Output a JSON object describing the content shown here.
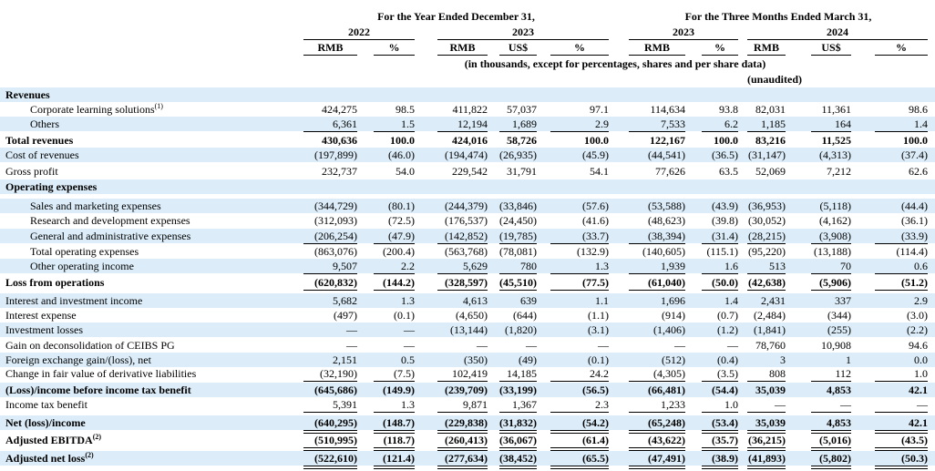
{
  "header": {
    "group_year": "For the Year Ended December 31,",
    "group_quarter": "For the Three Months Ended March 31,",
    "years": [
      "2022",
      "2023",
      "2023",
      "2024"
    ],
    "columns": [
      "RMB",
      "%",
      "RMB",
      "US$",
      "%",
      "RMB",
      "%",
      "RMB",
      "US$",
      "%"
    ],
    "note": "(in thousands, except for percentages, shares and per share data)",
    "unaudited": "(unaudited)"
  },
  "table": {
    "rows": [
      {
        "label": "Revenues",
        "values": []
      },
      {
        "label": "Corporate learning solutions",
        "sup": "(1)",
        "values": [
          "424,275",
          "98.5",
          "411,822",
          "57,037",
          "97.1",
          "114,634",
          "93.8",
          "82,031",
          "11,361",
          "98.6"
        ]
      },
      {
        "label": "Others",
        "values": [
          "6,361",
          "1.5",
          "12,194",
          "1,689",
          "2.9",
          "7,533",
          "6.2",
          "1,185",
          "164",
          "1.4"
        ]
      },
      {
        "label": "Total revenues",
        "values": [
          "430,636",
          "100.0",
          "424,016",
          "58,726",
          "100.0",
          "122,167",
          "100.0",
          "83,216",
          "11,525",
          "100.0"
        ]
      },
      {
        "label": "Cost of revenues",
        "values": [
          "(197,899)",
          "(46.0)",
          "(194,474)",
          "(26,935)",
          "(45.9)",
          "(44,541)",
          "(36.5)",
          "(31,147)",
          "(4,313)",
          "(37.4)"
        ]
      },
      {
        "label": "Gross profit",
        "values": [
          "232,737",
          "54.0",
          "229,542",
          "31,791",
          "54.1",
          "77,626",
          "63.5",
          "52,069",
          "7,212",
          "62.6"
        ]
      },
      {
        "label": "Operating expenses",
        "values": []
      },
      {
        "label": "Sales and marketing expenses",
        "values": [
          "(344,729)",
          "(80.1)",
          "(244,379)",
          "(33,846)",
          "(57.6)",
          "(53,588)",
          "(43.9)",
          "(36,953)",
          "(5,118)",
          "(44.4)"
        ]
      },
      {
        "label": "Research and development expenses",
        "values": [
          "(312,093)",
          "(72.5)",
          "(176,537)",
          "(24,450)",
          "(41.6)",
          "(48,623)",
          "(39.8)",
          "(30,052)",
          "(4,162)",
          "(36.1)"
        ]
      },
      {
        "label": "General and administrative expenses",
        "values": [
          "(206,254)",
          "(47.9)",
          "(142,852)",
          "(19,785)",
          "(33.7)",
          "(38,394)",
          "(31.4)",
          "(28,215)",
          "(3,908)",
          "(33.9)"
        ]
      },
      {
        "label": "Total operating expenses",
        "values": [
          "(863,076)",
          "(200.4)",
          "(563,768)",
          "(78,081)",
          "(132.9)",
          "(140,605)",
          "(115.1)",
          "(95,220)",
          "(13,188)",
          "(114.4)"
        ]
      },
      {
        "label": "Other operating income",
        "values": [
          "9,507",
          "2.2",
          "5,629",
          "780",
          "1.3",
          "1,939",
          "1.6",
          "513",
          "70",
          "0.6"
        ]
      },
      {
        "label": "Loss from operations",
        "values": [
          "(620,832)",
          "(144.2)",
          "(328,597)",
          "(45,510)",
          "(77.5)",
          "(61,040)",
          "(50.0)",
          "(42,638)",
          "(5,906)",
          "(51.2)"
        ]
      },
      {
        "label": "Interest and investment income",
        "values": [
          "5,682",
          "1.3",
          "4,613",
          "639",
          "1.1",
          "1,696",
          "1.4",
          "2,431",
          "337",
          "2.9"
        ]
      },
      {
        "label": "Interest expense",
        "values": [
          "(497)",
          "(0.1)",
          "(4,650)",
          "(644)",
          "(1.1)",
          "(914)",
          "(0.7)",
          "(2,484)",
          "(344)",
          "(3.0)"
        ]
      },
      {
        "label": "Investment losses",
        "values": [
          "—",
          "—",
          "(13,144)",
          "(1,820)",
          "(3.1)",
          "(1,406)",
          "(1.2)",
          "(1,841)",
          "(255)",
          "(2.2)"
        ]
      },
      {
        "label": "Gain on deconsolidation of CEIBS PG",
        "values": [
          "—",
          "—",
          "—",
          "—",
          "—",
          "—",
          "—",
          "78,760",
          "10,908",
          "94.6"
        ]
      },
      {
        "label": "Foreign exchange gain/(loss), net",
        "values": [
          "2,151",
          "0.5",
          "(350)",
          "(49)",
          "(0.1)",
          "(512)",
          "(0.4)",
          "3",
          "1",
          "0.0"
        ]
      },
      {
        "label": "Change in fair value of derivative liabilities",
        "values": [
          "(32,190)",
          "(7.5)",
          "102,419",
          "14,185",
          "24.2",
          "(4,305)",
          "(3.5)",
          "808",
          "112",
          "1.0"
        ]
      },
      {
        "label": "(Loss)/income before income tax benefit",
        "values": [
          "(645,686)",
          "(149.9)",
          "(239,709)",
          "(33,199)",
          "(56.5)",
          "(66,481)",
          "(54.4)",
          "35,039",
          "4,853",
          "42.1"
        ]
      },
      {
        "label": "Income tax benefit",
        "values": [
          "5,391",
          "1.3",
          "9,871",
          "1,367",
          "2.3",
          "1,233",
          "1.0",
          "—",
          "—",
          "—"
        ]
      },
      {
        "label": "Net (loss)/income",
        "values": [
          "(640,295)",
          "(148.7)",
          "(229,838)",
          "(31,832)",
          "(54.2)",
          "(65,248)",
          "(53.4)",
          "35,039",
          "4,853",
          "42.1"
        ]
      },
      {
        "label": "Adjusted EBITDA",
        "sup": "(2)",
        "values": [
          "(510,995)",
          "(118.7)",
          "(260,413)",
          "(36,067)",
          "(61.4)",
          "(43,622)",
          "(35.7)",
          "(36,215)",
          "(5,016)",
          "(43.5)"
        ]
      },
      {
        "label": "Adjusted net loss",
        "sup": "(2)",
        "values": [
          "(522,610)",
          "(121.4)",
          "(277,634)",
          "(38,452)",
          "(65.5)",
          "(47,491)",
          "(38.9)",
          "(41,893)",
          "(5,802)",
          "(50.3)"
        ]
      }
    ]
  }
}
